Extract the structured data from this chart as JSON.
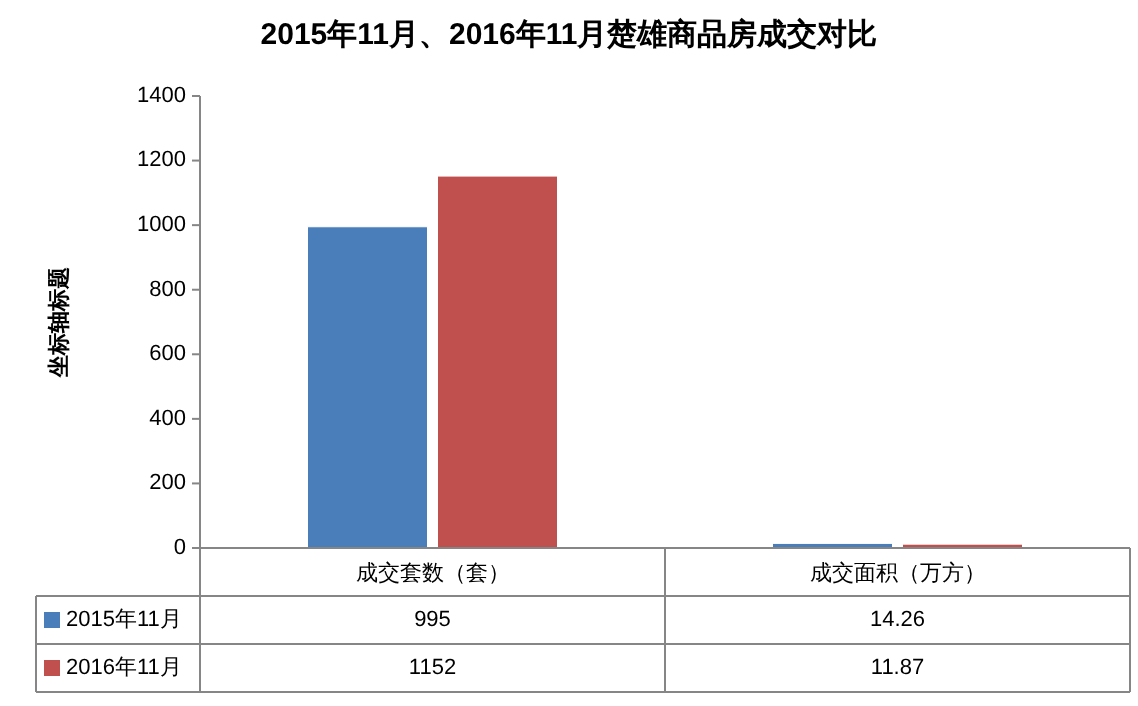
{
  "chart_data": {
    "type": "bar",
    "title": "2015年11月、2016年11月楚雄商品房成交对比",
    "ylabel": "坐标轴标题",
    "categories": [
      "成交套数（套）",
      "成交面积（万方）"
    ],
    "series": [
      {
        "name": "2015年11月",
        "color": "#4a7ebb",
        "values": [
          995,
          14.26
        ]
      },
      {
        "name": "2016年11月",
        "color": "#c0504d",
        "values": [
          1152,
          11.87
        ]
      }
    ],
    "ylim": [
      0,
      1400
    ],
    "yticks": [
      0,
      200,
      400,
      600,
      800,
      1000,
      1200,
      1400
    ],
    "data_labels": true,
    "legend": "bottom"
  }
}
